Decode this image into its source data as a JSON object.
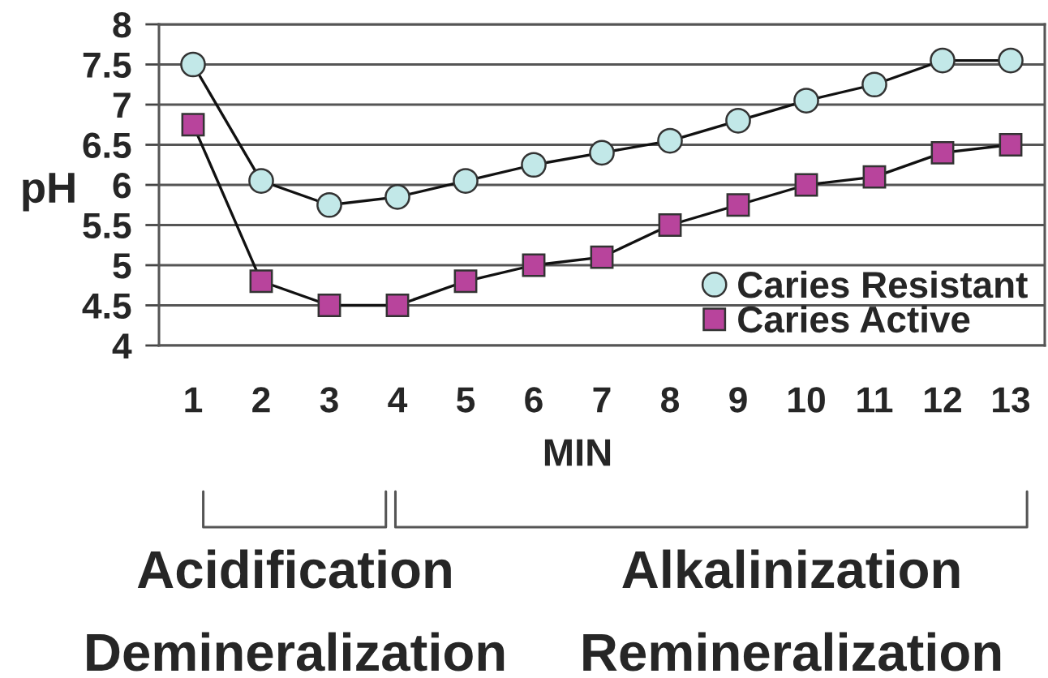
{
  "chart_data": {
    "type": "line",
    "ylabel": "pH",
    "xlabel": "MIN",
    "categories": [
      "1",
      "2",
      "3",
      "4",
      "5",
      "6",
      "7",
      "8",
      "9",
      "10",
      "11",
      "12",
      "13"
    ],
    "series": [
      {
        "name": "Caries Resistant",
        "color": "#c2e8e8",
        "marker": "circle",
        "values": [
          7.5,
          6.05,
          5.75,
          5.85,
          6.05,
          6.25,
          6.4,
          6.55,
          6.8,
          7.05,
          7.25,
          7.55,
          7.55
        ]
      },
      {
        "name": "Caries Active",
        "color": "#b8449c",
        "marker": "square",
        "values": [
          6.75,
          4.8,
          4.5,
          4.5,
          4.8,
          5.0,
          5.1,
          5.5,
          5.75,
          6.0,
          6.1,
          6.4,
          6.5
        ]
      }
    ],
    "ylim": [
      4,
      8
    ],
    "yticks": [
      4,
      4.5,
      5,
      5.5,
      6,
      6.5,
      7,
      7.5,
      8
    ],
    "grid": "y",
    "legend": "bottom right",
    "annotations": [
      "Acidification",
      "Demineralization",
      "Alkalinization",
      "Remineralization"
    ]
  }
}
